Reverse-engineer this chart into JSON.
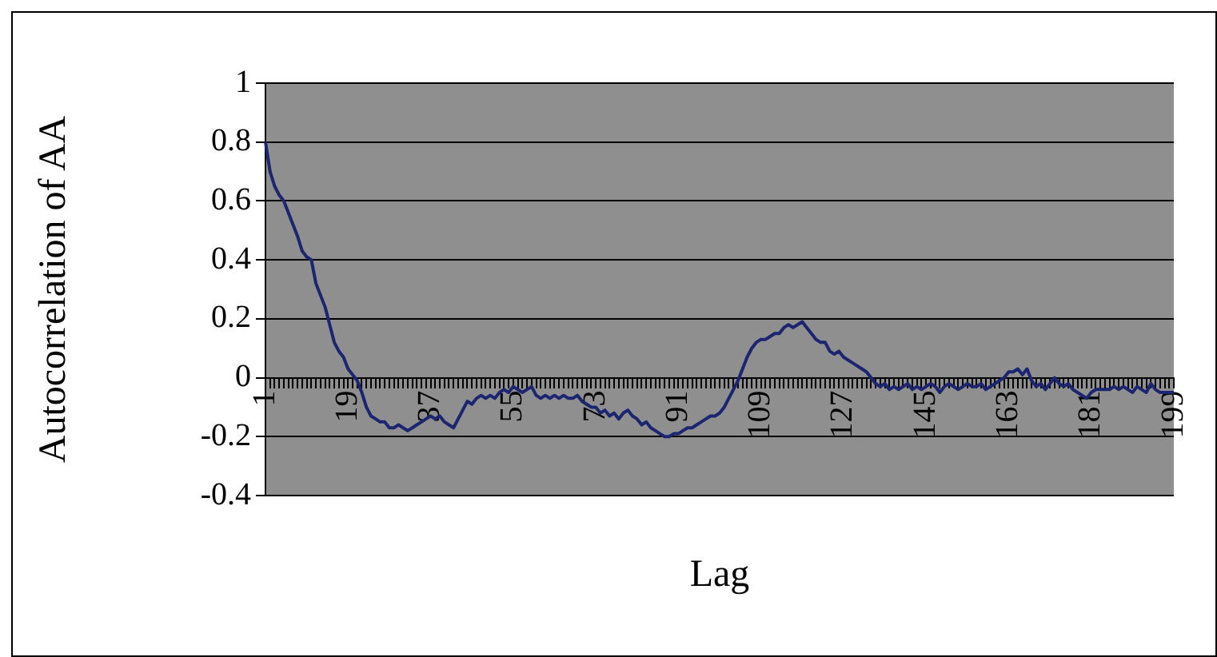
{
  "chart_data": {
    "type": "line",
    "ylabel": "Autocorrelation of AA",
    "xlabel": "Lag",
    "categories": [
      "1",
      null,
      null,
      null,
      null,
      null,
      null,
      null,
      null,
      null,
      null,
      null,
      null,
      null,
      null,
      null,
      null,
      null,
      "19",
      null,
      null,
      null,
      null,
      null,
      null,
      null,
      null,
      null,
      null,
      null,
      null,
      null,
      null,
      null,
      null,
      null,
      "37",
      null,
      null,
      null,
      null,
      null,
      null,
      null,
      null,
      null,
      null,
      null,
      null,
      null,
      null,
      null,
      null,
      null,
      "55",
      null,
      null,
      null,
      null,
      null,
      null,
      null,
      null,
      null,
      null,
      null,
      null,
      null,
      null,
      null,
      null,
      null,
      "73",
      null,
      null,
      null,
      null,
      null,
      null,
      null,
      null,
      null,
      null,
      null,
      null,
      null,
      null,
      null,
      null,
      null,
      "91",
      null,
      null,
      null,
      null,
      null,
      null,
      null,
      null,
      null,
      null,
      null,
      null,
      null,
      null,
      null,
      null,
      null,
      "109",
      null,
      null,
      null,
      null,
      null,
      null,
      null,
      null,
      null,
      null,
      null,
      null,
      null,
      null,
      null,
      null,
      null,
      "127",
      null,
      null,
      null,
      null,
      null,
      null,
      null,
      null,
      null,
      null,
      null,
      null,
      null,
      null,
      null,
      null,
      null,
      "145",
      null,
      null,
      null,
      null,
      null,
      null,
      null,
      null,
      null,
      null,
      null,
      null,
      null,
      null,
      null,
      null,
      null,
      "163",
      null,
      null,
      null,
      null,
      null,
      null,
      null,
      null,
      null,
      null,
      null,
      null,
      null,
      null,
      null,
      null,
      null,
      "181",
      null,
      null,
      null,
      null,
      null,
      null,
      null,
      null,
      null,
      null,
      null,
      null,
      null,
      null,
      null,
      null,
      null,
      "199"
    ],
    "values": [
      0.8,
      0.7,
      0.65,
      0.62,
      0.6,
      0.56,
      0.52,
      0.48,
      0.43,
      0.41,
      0.4,
      0.32,
      0.28,
      0.24,
      0.18,
      0.12,
      0.09,
      0.07,
      0.03,
      0.01,
      -0.01,
      -0.05,
      -0.1,
      -0.13,
      -0.14,
      -0.15,
      -0.15,
      -0.17,
      -0.17,
      -0.16,
      -0.17,
      -0.18,
      -0.17,
      -0.16,
      -0.15,
      -0.14,
      -0.13,
      -0.14,
      -0.13,
      -0.15,
      -0.16,
      -0.17,
      -0.14,
      -0.11,
      -0.08,
      -0.09,
      -0.07,
      -0.06,
      -0.07,
      -0.06,
      -0.07,
      -0.05,
      -0.04,
      -0.05,
      -0.03,
      -0.04,
      -0.05,
      -0.04,
      -0.03,
      -0.06,
      -0.07,
      -0.06,
      -0.07,
      -0.06,
      -0.07,
      -0.06,
      -0.07,
      -0.07,
      -0.06,
      -0.08,
      -0.09,
      -0.1,
      -0.1,
      -0.12,
      -0.11,
      -0.13,
      -0.12,
      -0.14,
      -0.12,
      -0.11,
      -0.13,
      -0.14,
      -0.16,
      -0.15,
      -0.17,
      -0.18,
      -0.19,
      -0.2,
      -0.2,
      -0.19,
      -0.19,
      -0.18,
      -0.17,
      -0.17,
      -0.16,
      -0.15,
      -0.14,
      -0.13,
      -0.13,
      -0.12,
      -0.1,
      -0.07,
      -0.04,
      -0.01,
      0.03,
      0.07,
      0.1,
      0.12,
      0.13,
      0.13,
      0.14,
      0.15,
      0.15,
      0.17,
      0.18,
      0.17,
      0.18,
      0.19,
      0.17,
      0.15,
      0.13,
      0.12,
      0.12,
      0.09,
      0.08,
      0.09,
      0.07,
      0.06,
      0.05,
      0.04,
      0.03,
      0.02,
      0,
      -0.02,
      -0.03,
      -0.02,
      -0.04,
      -0.03,
      -0.04,
      -0.03,
      -0.02,
      -0.04,
      -0.03,
      -0.04,
      -0.03,
      -0.02,
      -0.03,
      -0.05,
      -0.03,
      -0.02,
      -0.03,
      -0.04,
      -0.03,
      -0.02,
      -0.03,
      -0.03,
      -0.02,
      -0.04,
      -0.03,
      -0.02,
      -0.01,
      0,
      0.02,
      0.02,
      0.03,
      0.01,
      0.03,
      -0.01,
      -0.03,
      -0.02,
      -0.04,
      -0.02,
      0,
      -0.02,
      -0.03,
      -0.02,
      -0.04,
      -0.05,
      -0.06,
      -0.07,
      -0.05,
      -0.04,
      -0.04,
      -0.04,
      -0.04,
      -0.03,
      -0.04,
      -0.03,
      -0.04,
      -0.05,
      -0.03,
      -0.04,
      -0.05,
      -0.02,
      -0.04,
      -0.05,
      -0.05,
      -0.05,
      -0.05
    ],
    "color": "#1c2570",
    "marker": "none",
    "ylim": [
      -0.4,
      1
    ],
    "yticks": [
      -0.4,
      -0.2,
      0,
      0.2,
      0.4,
      0.6,
      0.8,
      1
    ],
    "grid": "y"
  }
}
